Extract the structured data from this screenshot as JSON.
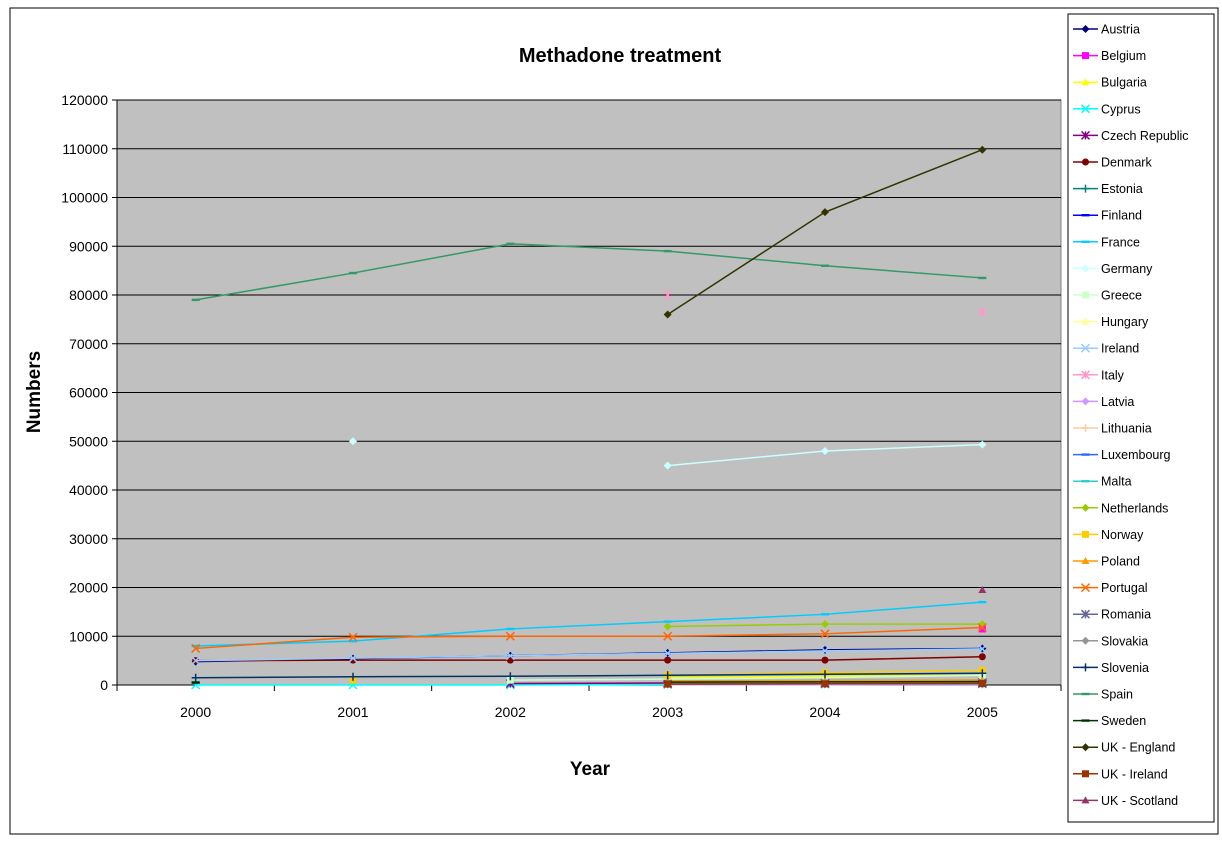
{
  "chart_data": {
    "type": "line",
    "title": "Methadone treatment",
    "xlabel": "Year",
    "ylabel": "Numbers",
    "x": [
      "2000",
      "2001",
      "2002",
      "2003",
      "2004",
      "2005"
    ],
    "ylim": [
      0,
      120000
    ],
    "yticks": [
      0,
      10000,
      20000,
      30000,
      40000,
      50000,
      60000,
      70000,
      80000,
      90000,
      100000,
      110000,
      120000
    ],
    "grid": true,
    "legend": "right",
    "series": [
      {
        "name": "Austria",
        "color": "#000080",
        "marker": "diamond",
        "values": [
          4800,
          5400,
          6000,
          6600,
          7200,
          7500
        ]
      },
      {
        "name": "Belgium",
        "color": "#ff00ff",
        "marker": "square",
        "values": [
          null,
          null,
          null,
          null,
          null,
          11500
        ]
      },
      {
        "name": "Bulgaria",
        "color": "#ffff00",
        "marker": "triangle",
        "values": [
          null,
          null,
          null,
          1500,
          1800,
          2000
        ]
      },
      {
        "name": "Cyprus",
        "color": "#00ffff",
        "marker": "x",
        "values": [
          0,
          0,
          0,
          100,
          150,
          200
        ]
      },
      {
        "name": "Czech Republic",
        "color": "#800080",
        "marker": "star",
        "values": [
          null,
          null,
          300,
          400,
          450,
          500
        ]
      },
      {
        "name": "Denmark",
        "color": "#800000",
        "marker": "circle",
        "values": [
          5000,
          5100,
          5100,
          5100,
          5100,
          5800
        ]
      },
      {
        "name": "Estonia",
        "color": "#008080",
        "marker": "plus",
        "values": [
          null,
          null,
          null,
          300,
          400,
          500
        ]
      },
      {
        "name": "Finland",
        "color": "#0000ff",
        "marker": "dash",
        "values": [
          500,
          null,
          null,
          600,
          700,
          800
        ]
      },
      {
        "name": "France",
        "color": "#00ccff",
        "marker": "dash",
        "values": [
          8000,
          9000,
          11500,
          13000,
          14500,
          17000
        ]
      },
      {
        "name": "Germany",
        "color": "#ccffff",
        "marker": "diamond",
        "values": [
          null,
          50000,
          null,
          45000,
          48000,
          49300
        ]
      },
      {
        "name": "Greece",
        "color": "#ccffcc",
        "marker": "square",
        "values": [
          null,
          null,
          1000,
          1200,
          1500,
          2000
        ]
      },
      {
        "name": "Hungary",
        "color": "#ffff99",
        "marker": "triangle",
        "values": [
          null,
          null,
          null,
          500,
          600,
          700
        ]
      },
      {
        "name": "Ireland",
        "color": "#99ccff",
        "marker": "x",
        "values": [
          5000,
          5500,
          6000,
          6500,
          7000,
          7400
        ]
      },
      {
        "name": "Italy",
        "color": "#ff99cc",
        "marker": "star",
        "values": [
          null,
          null,
          null,
          80000,
          null,
          76500
        ]
      },
      {
        "name": "Latvia",
        "color": "#cc99ff",
        "marker": "diamond",
        "values": [
          null,
          null,
          null,
          50,
          60,
          80
        ]
      },
      {
        "name": "Lithuania",
        "color": "#ffcc99",
        "marker": "plus",
        "values": [
          null,
          null,
          null,
          400,
          500,
          600
        ]
      },
      {
        "name": "Luxembourg",
        "color": "#3366ff",
        "marker": "dash",
        "values": [
          null,
          null,
          null,
          800,
          900,
          1000
        ]
      },
      {
        "name": "Malta",
        "color": "#33cccc",
        "marker": "dash",
        "values": [
          null,
          null,
          null,
          500,
          600,
          700
        ]
      },
      {
        "name": "Netherlands",
        "color": "#99cc00",
        "marker": "diamond",
        "values": [
          null,
          null,
          null,
          12000,
          12500,
          12500
        ]
      },
      {
        "name": "Norway",
        "color": "#ffcc00",
        "marker": "square",
        "values": [
          null,
          1000,
          null,
          2000,
          2500,
          3000
        ]
      },
      {
        "name": "Poland",
        "color": "#ff9900",
        "marker": "triangle",
        "values": [
          null,
          null,
          null,
          800,
          900,
          1000
        ]
      },
      {
        "name": "Portugal",
        "color": "#ff6600",
        "marker": "x",
        "values": [
          7500,
          9800,
          10000,
          10000,
          10500,
          11800
        ]
      },
      {
        "name": "Romania",
        "color": "#666699",
        "marker": "star",
        "values": [
          null,
          null,
          null,
          200,
          250,
          300
        ]
      },
      {
        "name": "Slovakia",
        "color": "#969696",
        "marker": "diamond",
        "values": [
          null,
          null,
          null,
          300,
          350,
          400
        ]
      },
      {
        "name": "Slovenia",
        "color": "#003366",
        "marker": "plus",
        "values": [
          1500,
          1700,
          1800,
          2000,
          2200,
          2400
        ]
      },
      {
        "name": "Spain",
        "color": "#339966",
        "marker": "dash",
        "values": [
          79000,
          84500,
          90500,
          89000,
          86000,
          83500
        ]
      },
      {
        "name": "Sweden",
        "color": "#003300",
        "marker": "dash",
        "values": [
          500,
          null,
          null,
          600,
          650,
          700
        ]
      },
      {
        "name": "UK - England",
        "color": "#333300",
        "marker": "diamond",
        "values": [
          null,
          null,
          null,
          76000,
          97000,
          109800
        ]
      },
      {
        "name": "UK - Ireland",
        "color": "#993300",
        "marker": "square",
        "values": [
          null,
          null,
          null,
          200,
          250,
          300
        ]
      },
      {
        "name": "UK - Scotland",
        "color": "#993366",
        "marker": "triangle",
        "values": [
          null,
          null,
          null,
          null,
          null,
          19500
        ]
      }
    ]
  }
}
